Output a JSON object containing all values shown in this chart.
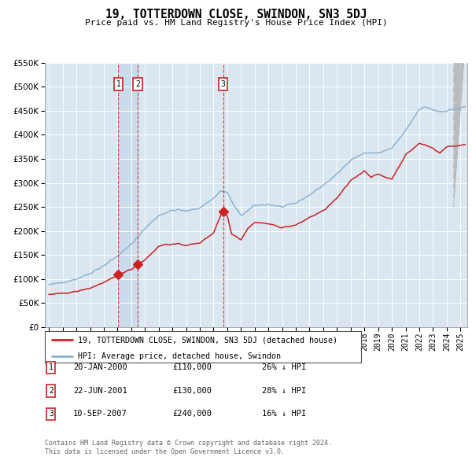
{
  "title": "19, TOTTERDOWN CLOSE, SWINDON, SN3 5DJ",
  "subtitle": "Price paid vs. HM Land Registry's House Price Index (HPI)",
  "legend_line1": "19, TOTTERDOWN CLOSE, SWINDON, SN3 5DJ (detached house)",
  "legend_line2": "HPI: Average price, detached house, Swindon",
  "footer1": "Contains HM Land Registry data © Crown copyright and database right 2024.",
  "footer2": "This data is licensed under the Open Government Licence v3.0.",
  "transactions": [
    {
      "num": 1,
      "date": "20-JAN-2000",
      "price": 110000,
      "pct": "26%",
      "dir": "↓"
    },
    {
      "num": 2,
      "date": "22-JUN-2001",
      "price": 130000,
      "pct": "28%",
      "dir": "↓"
    },
    {
      "num": 3,
      "date": "10-SEP-2007",
      "price": 240000,
      "pct": "16%",
      "dir": "↓"
    }
  ],
  "transaction_dates_decimal": [
    2000.054,
    2001.474,
    2007.692
  ],
  "hpi_color": "#8ab4d4",
  "price_color": "#cc2222",
  "bg_plot": "#dae6f0",
  "bg_figure": "#ffffff",
  "grid_color": "#ffffff",
  "ylim": [
    0,
    550000
  ],
  "xlim_start": 1994.7,
  "xlim_end": 2025.5,
  "hpi_anchors": [
    [
      1995.0,
      88000
    ],
    [
      1996.0,
      93000
    ],
    [
      1997.0,
      100000
    ],
    [
      1998.0,
      112000
    ],
    [
      1999.0,
      128000
    ],
    [
      2000.0,
      148000
    ],
    [
      2001.0,
      172000
    ],
    [
      2002.0,
      205000
    ],
    [
      2003.0,
      232000
    ],
    [
      2004.0,
      243000
    ],
    [
      2004.5,
      244000
    ],
    [
      2005.0,
      241000
    ],
    [
      2006.0,
      248000
    ],
    [
      2007.0,
      268000
    ],
    [
      2007.5,
      283000
    ],
    [
      2008.0,
      280000
    ],
    [
      2008.5,
      252000
    ],
    [
      2009.0,
      232000
    ],
    [
      2009.5,
      242000
    ],
    [
      2010.0,
      253000
    ],
    [
      2011.0,
      255000
    ],
    [
      2012.0,
      250000
    ],
    [
      2013.0,
      258000
    ],
    [
      2014.0,
      275000
    ],
    [
      2015.0,
      295000
    ],
    [
      2016.0,
      318000
    ],
    [
      2017.0,
      348000
    ],
    [
      2018.0,
      362000
    ],
    [
      2019.0,
      362000
    ],
    [
      2020.0,
      372000
    ],
    [
      2021.0,
      408000
    ],
    [
      2022.0,
      453000
    ],
    [
      2022.5,
      458000
    ],
    [
      2023.0,
      452000
    ],
    [
      2023.5,
      448000
    ],
    [
      2024.0,
      450000
    ],
    [
      2025.0,
      455000
    ],
    [
      2025.3,
      458000
    ]
  ],
  "prop_anchors": [
    [
      1995.0,
      68000
    ],
    [
      1996.0,
      70000
    ],
    [
      1997.0,
      74000
    ],
    [
      1998.0,
      81000
    ],
    [
      1999.0,
      93000
    ],
    [
      1999.8,
      104000
    ],
    [
      2000.054,
      110000
    ],
    [
      2001.0,
      120000
    ],
    [
      2001.474,
      130000
    ],
    [
      2002.0,
      140000
    ],
    [
      2003.0,
      168000
    ],
    [
      2003.5,
      172000
    ],
    [
      2004.0,
      172000
    ],
    [
      2004.5,
      173000
    ],
    [
      2005.0,
      170000
    ],
    [
      2006.0,
      175000
    ],
    [
      2007.0,
      196000
    ],
    [
      2007.6,
      238000
    ],
    [
      2007.692,
      240000
    ],
    [
      2008.0,
      232000
    ],
    [
      2008.3,
      195000
    ],
    [
      2009.0,
      182000
    ],
    [
      2009.5,
      205000
    ],
    [
      2010.0,
      218000
    ],
    [
      2011.0,
      215000
    ],
    [
      2012.0,
      207000
    ],
    [
      2013.0,
      212000
    ],
    [
      2014.0,
      228000
    ],
    [
      2015.0,
      242000
    ],
    [
      2016.0,
      268000
    ],
    [
      2017.0,
      305000
    ],
    [
      2018.0,
      325000
    ],
    [
      2018.5,
      312000
    ],
    [
      2019.0,
      318000
    ],
    [
      2019.5,
      312000
    ],
    [
      2020.0,
      308000
    ],
    [
      2021.0,
      358000
    ],
    [
      2022.0,
      382000
    ],
    [
      2022.5,
      378000
    ],
    [
      2023.0,
      372000
    ],
    [
      2023.5,
      362000
    ],
    [
      2024.0,
      375000
    ],
    [
      2025.0,
      378000
    ],
    [
      2025.3,
      380000
    ]
  ]
}
